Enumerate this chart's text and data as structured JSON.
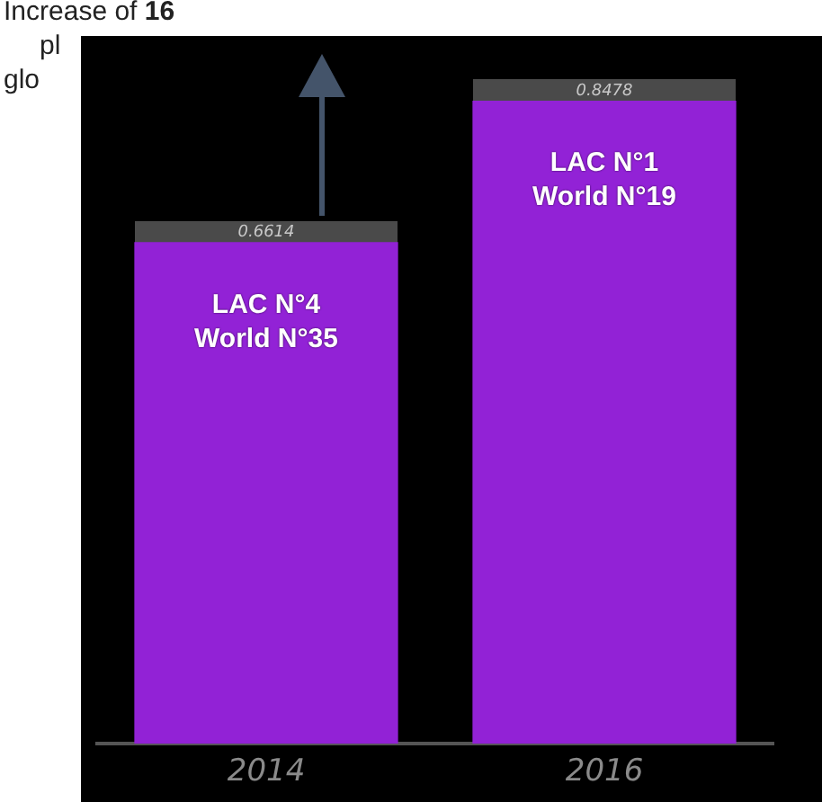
{
  "chart_data": {
    "type": "bar",
    "categories": [
      "2014",
      "2016"
    ],
    "values": [
      0.6614,
      0.8478
    ],
    "color": "#9222d6",
    "data_labels": true,
    "legend": false,
    "tick_labels": "x",
    "annotations": [
      "Increase of 16",
      "pl",
      "glo",
      "LAC N°4\nWorld N°35",
      "LAC N°1\nWorld N°19"
    ]
  }
}
